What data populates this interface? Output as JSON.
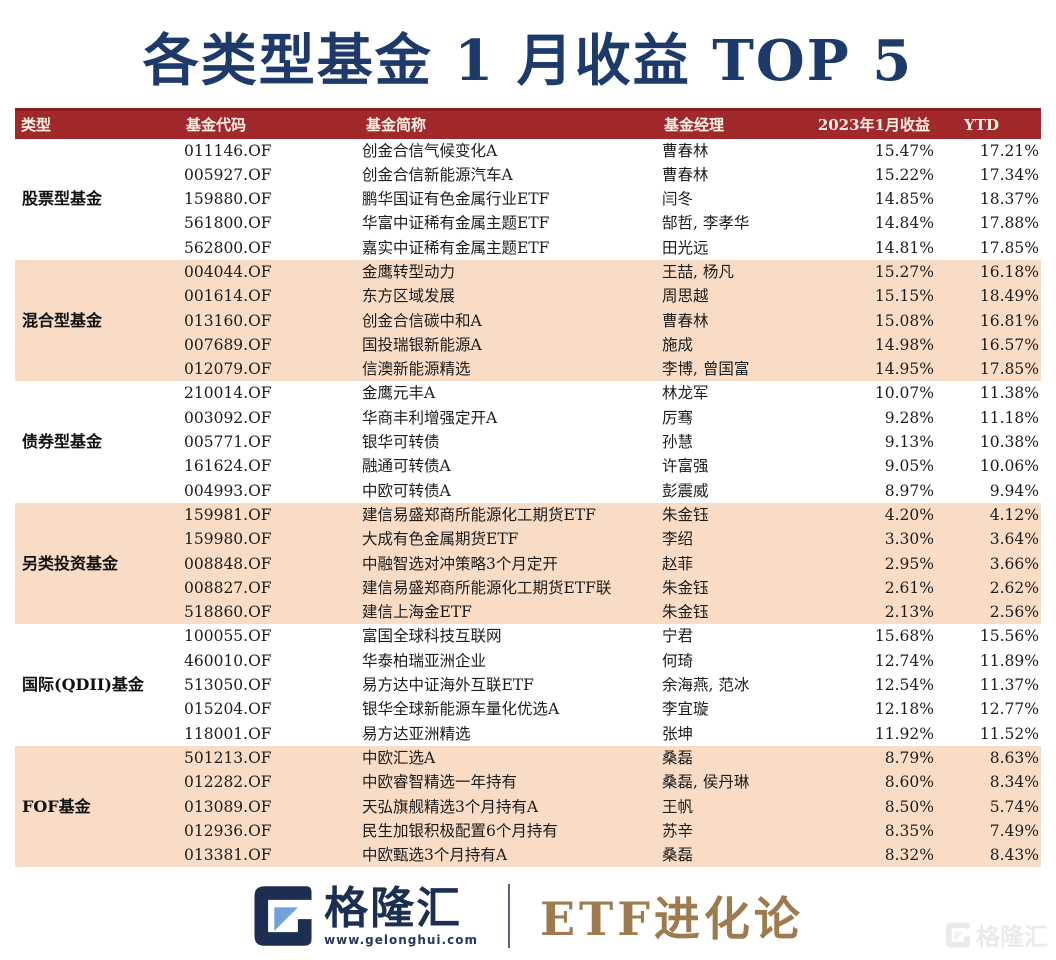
{
  "title": "各类型基金 1 月收益 TOP 5",
  "table": {
    "headers": {
      "type": "类型",
      "code": "基金代码",
      "name": "基金简称",
      "manager": "基金经理",
      "jan_return": "2023年1月收益",
      "ytd": "YTD"
    },
    "groups": [
      {
        "type": "股票型基金",
        "rows": [
          {
            "code": "011146.OF",
            "name": "创金合信气候变化A",
            "manager": "曹春林",
            "jan": "15.47%",
            "ytd": "17.21%"
          },
          {
            "code": "005927.OF",
            "name": "创金合信新能源汽车A",
            "manager": "曹春林",
            "jan": "15.22%",
            "ytd": "17.34%"
          },
          {
            "code": "159880.OF",
            "name": "鹏华国证有色金属行业ETF",
            "manager": "闫冬",
            "jan": "14.85%",
            "ytd": "18.37%"
          },
          {
            "code": "561800.OF",
            "name": "华富中证稀有金属主题ETF",
            "manager": "郜哲, 李孝华",
            "jan": "14.84%",
            "ytd": "17.88%"
          },
          {
            "code": "562800.OF",
            "name": "嘉实中证稀有金属主题ETF",
            "manager": "田光远",
            "jan": "14.81%",
            "ytd": "17.85%"
          }
        ]
      },
      {
        "type": "混合型基金",
        "rows": [
          {
            "code": "004044.OF",
            "name": "金鹰转型动力",
            "manager": "王喆, 杨凡",
            "jan": "15.27%",
            "ytd": "16.18%"
          },
          {
            "code": "001614.OF",
            "name": "东方区域发展",
            "manager": "周思越",
            "jan": "15.15%",
            "ytd": "18.49%"
          },
          {
            "code": "013160.OF",
            "name": "创金合信碳中和A",
            "manager": "曹春林",
            "jan": "15.08%",
            "ytd": "16.81%"
          },
          {
            "code": "007689.OF",
            "name": "国投瑞银新能源A",
            "manager": "施成",
            "jan": "14.98%",
            "ytd": "16.57%"
          },
          {
            "code": "012079.OF",
            "name": "信澳新能源精选",
            "manager": "李博, 曾国富",
            "jan": "14.95%",
            "ytd": "17.85%"
          }
        ]
      },
      {
        "type": "债券型基金",
        "rows": [
          {
            "code": "210014.OF",
            "name": "金鹰元丰A",
            "manager": "林龙军",
            "jan": "10.07%",
            "ytd": "11.38%"
          },
          {
            "code": "003092.OF",
            "name": "华商丰利增强定开A",
            "manager": "厉骞",
            "jan": "9.28%",
            "ytd": "11.18%"
          },
          {
            "code": "005771.OF",
            "name": "银华可转债",
            "manager": "孙慧",
            "jan": "9.13%",
            "ytd": "10.38%"
          },
          {
            "code": "161624.OF",
            "name": "融通可转债A",
            "manager": "许富强",
            "jan": "9.05%",
            "ytd": "10.06%"
          },
          {
            "code": "004993.OF",
            "name": "中欧可转债A",
            "manager": "彭震威",
            "jan": "8.97%",
            "ytd": "9.94%"
          }
        ]
      },
      {
        "type": "另类投资基金",
        "rows": [
          {
            "code": "159981.OF",
            "name": "建信易盛郑商所能源化工期货ETF",
            "manager": "朱金钰",
            "jan": "4.20%",
            "ytd": "4.12%"
          },
          {
            "code": "159980.OF",
            "name": "大成有色金属期货ETF",
            "manager": "李绍",
            "jan": "3.30%",
            "ytd": "3.64%"
          },
          {
            "code": "008848.OF",
            "name": "中融智选对冲策略3个月定开",
            "manager": "赵菲",
            "jan": "2.95%",
            "ytd": "3.66%"
          },
          {
            "code": "008827.OF",
            "name": "建信易盛郑商所能源化工期货ETF联",
            "manager": "朱金钰",
            "jan": "2.61%",
            "ytd": "2.62%"
          },
          {
            "code": "518860.OF",
            "name": "建信上海金ETF",
            "manager": "朱金钰",
            "jan": "2.13%",
            "ytd": "2.56%"
          }
        ]
      },
      {
        "type": "国际(QDII)基金",
        "rows": [
          {
            "code": "100055.OF",
            "name": "富国全球科技互联网",
            "manager": "宁君",
            "jan": "15.68%",
            "ytd": "15.56%"
          },
          {
            "code": "460010.OF",
            "name": "华泰柏瑞亚洲企业",
            "manager": "何琦",
            "jan": "12.74%",
            "ytd": "11.89%"
          },
          {
            "code": "513050.OF",
            "name": "易方达中证海外互联ETF",
            "manager": "余海燕, 范冰",
            "jan": "12.54%",
            "ytd": "11.37%"
          },
          {
            "code": "015204.OF",
            "name": "银华全球新能源车量化优选A",
            "manager": "李宜璇",
            "jan": "12.18%",
            "ytd": "12.77%"
          },
          {
            "code": "118001.OF",
            "name": "易方达亚洲精选",
            "manager": "张坤",
            "jan": "11.92%",
            "ytd": "11.52%"
          }
        ]
      },
      {
        "type": "FOF基金",
        "rows": [
          {
            "code": "501213.OF",
            "name": "中欧汇选A",
            "manager": "桑磊",
            "jan": "8.79%",
            "ytd": "8.63%"
          },
          {
            "code": "012282.OF",
            "name": "中欧睿智精选一年持有",
            "manager": "桑磊, 侯丹琳",
            "jan": "8.60%",
            "ytd": "8.34%"
          },
          {
            "code": "013089.OF",
            "name": "天弘旗舰精选3个月持有A",
            "manager": "王帆",
            "jan": "8.50%",
            "ytd": "5.74%"
          },
          {
            "code": "012936.OF",
            "name": "民生加银积极配置6个月持有",
            "manager": "苏辛",
            "jan": "8.35%",
            "ytd": "7.49%"
          },
          {
            "code": "013381.OF",
            "name": "中欧甄选3个月持有A",
            "manager": "桑磊",
            "jan": "8.32%",
            "ytd": "8.43%"
          }
        ]
      }
    ]
  },
  "footer": {
    "brand_name": "格隆汇",
    "brand_url": "www.gelonghui.com",
    "program_name": "ETF进化论"
  },
  "watermark": {
    "text": "格隆汇"
  },
  "colors": {
    "title_navy": "#1e3a6b",
    "header_red": "#a1282b",
    "header_red_dark": "#8c181b",
    "band_pink": "#f8dcc6",
    "band_white": "#ffffff",
    "program_bronze": "#9d7b4e",
    "logo_navy": "#1c2f52",
    "logo_blue": "#6fa3d8",
    "watermark_gray": "#d9d9d9"
  }
}
